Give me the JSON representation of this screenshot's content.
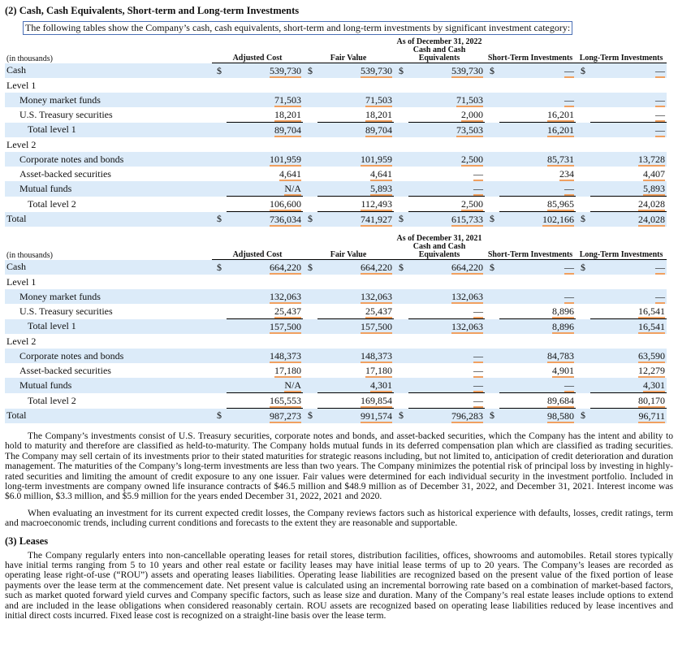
{
  "section1": {
    "heading": "(2) Cash, Cash Equivalents, Short-term and Long-term Investments",
    "intro": "The following tables show the Company’s cash, cash equivalents, short-term and long-term investments by significant investment category:"
  },
  "tables": [
    {
      "period": "As of December 31, 2022",
      "unit": "(in thousands)",
      "columns": [
        "Adjusted Cost",
        "Fair Value",
        "Cash and Cash Equivalents",
        "Short-Term Investments",
        "Long-Term Investments"
      ],
      "rows": [
        [
          "Cash",
          "$",
          "539,730",
          "$",
          "539,730",
          "$",
          "539,730",
          "$",
          "—",
          "$",
          "—"
        ],
        [
          "Level 1",
          null,
          null,
          null,
          null,
          null,
          null,
          null,
          null,
          null,
          null
        ],
        [
          "Money market funds",
          null,
          "71,503",
          null,
          "71,503",
          null,
          "71,503",
          null,
          "—",
          null,
          "—"
        ],
        [
          "U.S. Treasury securities",
          null,
          "18,201",
          null,
          "18,201",
          null,
          "2,000",
          null,
          "16,201",
          null,
          "—"
        ],
        [
          "Total level 1",
          null,
          "89,704",
          null,
          "89,704",
          null,
          "73,503",
          null,
          "16,201",
          null,
          "—"
        ],
        [
          "Level 2",
          null,
          null,
          null,
          null,
          null,
          null,
          null,
          null,
          null,
          null
        ],
        [
          "Corporate notes and bonds",
          null,
          "101,959",
          null,
          "101,959",
          null,
          "2,500",
          null,
          "85,731",
          null,
          "13,728"
        ],
        [
          "Asset-backed securities",
          null,
          "4,641",
          null,
          "4,641",
          null,
          "—",
          null,
          "234",
          null,
          "4,407"
        ],
        [
          "Mutual funds",
          null,
          "N/A",
          null,
          "5,893",
          null,
          "—",
          null,
          "—",
          null,
          "5,893"
        ],
        [
          "Total level 2",
          null,
          "106,600",
          null,
          "112,493",
          null,
          "2,500",
          null,
          "85,965",
          null,
          "24,028"
        ],
        [
          "Total",
          "$",
          "736,034",
          "$",
          "741,927",
          "$",
          "615,733",
          "$",
          "102,166",
          "$",
          "24,028"
        ]
      ]
    },
    {
      "period": "As of December 31, 2021",
      "unit": "(in thousands)",
      "columns": [
        "Adjusted Cost",
        "Fair Value",
        "Cash and Cash Equivalents",
        "Short-Term Investments",
        "Long-Term Investments"
      ],
      "rows": [
        [
          "Cash",
          "$",
          "664,220",
          "$",
          "664,220",
          "$",
          "664,220",
          "$",
          "—",
          "$",
          "—"
        ],
        [
          "Level 1",
          null,
          null,
          null,
          null,
          null,
          null,
          null,
          null,
          null,
          null
        ],
        [
          "Money market funds",
          null,
          "132,063",
          null,
          "132,063",
          null,
          "132,063",
          null,
          "—",
          null,
          "—"
        ],
        [
          "U.S. Treasury securities",
          null,
          "25,437",
          null,
          "25,437",
          null,
          "—",
          null,
          "8,896",
          null,
          "16,541"
        ],
        [
          "Total level 1",
          null,
          "157,500",
          null,
          "157,500",
          null,
          "132,063",
          null,
          "8,896",
          null,
          "16,541"
        ],
        [
          "Level 2",
          null,
          null,
          null,
          null,
          null,
          null,
          null,
          null,
          null,
          null
        ],
        [
          "Corporate notes and bonds",
          null,
          "148,373",
          null,
          "148,373",
          null,
          "—",
          null,
          "84,783",
          null,
          "63,590"
        ],
        [
          "Asset-backed securities",
          null,
          "17,180",
          null,
          "17,180",
          null,
          "—",
          null,
          "4,901",
          null,
          "12,279"
        ],
        [
          "Mutual funds",
          null,
          "N/A",
          null,
          "4,301",
          null,
          "—",
          null,
          "—",
          null,
          "4,301"
        ],
        [
          "Total level 2",
          null,
          "165,553",
          null,
          "169,854",
          null,
          "—",
          null,
          "89,684",
          null,
          "80,170"
        ],
        [
          "Total",
          "$",
          "987,273",
          "$",
          "991,574",
          "$",
          "796,283",
          "$",
          "98,580",
          "$",
          "96,711"
        ]
      ]
    }
  ],
  "paragraphs": [
    "The Company’s investments consist of U.S. Treasury securities, corporate notes and bonds, and asset-backed securities, which the Company has the intent and ability to hold to maturity and therefore are classified as held-to-maturity. The Company holds mutual funds in its deferred compensation plan which are classified as trading securities. The Company may sell certain of its investments prior to their stated maturities for strategic reasons including, but not limited to, anticipation of credit deterioration and duration management. The maturities of the Company’s long-term investments are less than two years. The Company minimizes the potential risk of principal loss by investing in highly-rated securities and limiting the amount of credit exposure to any one issuer. Fair values were determined for each individual security in the investment portfolio. Included in long-term investments are company owned life insurance contracts of $46.5 million and $48.9 million as of December 31, 2022, and December 31, 2021. Interest income was $6.0 million, $3.3 million, and $5.9 million for the years ended December 31, 2022, 2021 and 2020.",
    "When evaluating an investment for its current expected credit losses, the Company reviews factors such as historical experience with defaults, losses, credit ratings, term and macroeconomic trends, including current conditions and forecasts to the extent they are reasonable and supportable."
  ],
  "section2": {
    "heading": "(3) Leases",
    "paragraph": "The Company regularly enters into non-cancellable operating leases for retail stores, distribution facilities, offices, showrooms and automobiles. Retail stores typically have initial terms ranging from 5 to 10 years and other real estate or facility leases may have initial lease terms of up to 20 years. The Company’s leases are recorded as operating lease right-of-use (“ROU”) assets and operating leases liabilities. Operating lease liabilities are recognized based on the present value of the fixed portion of lease payments over the lease term at the commencement date. Net present value is calculated using an incremental borrowing rate based on a combination of market-based factors, such as market quoted forward yield curves and Company specific factors, such as lease size and duration. Many of the Company’s real estate leases include options to extend and are included in the lease obligations when considered reasonably certain. ROU assets are recognized based on operating lease liabilities reduced by lease incentives and initial direct costs incurred. Fixed lease cost is recognized on a straight-line basis over the lease term."
  }
}
